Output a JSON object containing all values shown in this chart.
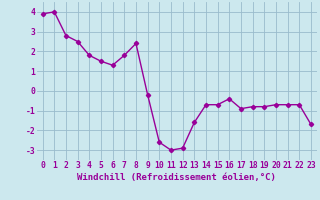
{
  "x": [
    0,
    1,
    2,
    3,
    4,
    5,
    6,
    7,
    8,
    9,
    10,
    11,
    12,
    13,
    14,
    15,
    16,
    17,
    18,
    19,
    20,
    21,
    22,
    23
  ],
  "y": [
    3.9,
    4.0,
    2.8,
    2.5,
    1.8,
    1.5,
    1.3,
    1.8,
    2.4,
    -0.2,
    -2.6,
    -3.0,
    -2.9,
    -1.6,
    -0.7,
    -0.7,
    -0.4,
    -0.9,
    -0.8,
    -0.8,
    -0.7,
    -0.7,
    -0.7,
    -1.7
  ],
  "line_color": "#990099",
  "marker": "D",
  "markersize": 2.2,
  "linewidth": 1.0,
  "bg_color": "#cce8ee",
  "grid_color": "#99bbcc",
  "xlabel": "Windchill (Refroidissement éolien,°C)",
  "xlabel_fontsize": 6.5,
  "tick_fontsize": 5.8,
  "ylim": [
    -3.5,
    4.5
  ],
  "yticks": [
    -3,
    -2,
    -1,
    0,
    1,
    2,
    3,
    4
  ],
  "xticks": [
    0,
    1,
    2,
    3,
    4,
    5,
    6,
    7,
    8,
    9,
    10,
    11,
    12,
    13,
    14,
    15,
    16,
    17,
    18,
    19,
    20,
    21,
    22,
    23
  ]
}
